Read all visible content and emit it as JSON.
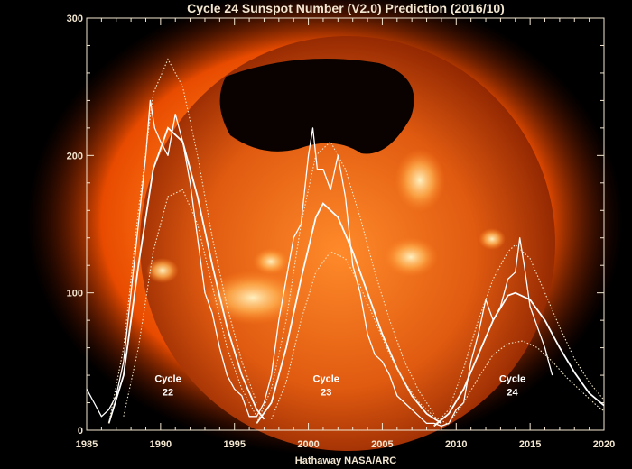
{
  "chart_data": {
    "type": "line",
    "title": "Cycle 24 Sunspot Number (V2.0) Prediction (2016/10)",
    "credit": "Hathaway  NASA/ARC",
    "xlim": [
      1985,
      2020
    ],
    "ylim": [
      0,
      300
    ],
    "x_ticks": [
      1985,
      1990,
      1995,
      2000,
      2005,
      2010,
      2015,
      2020
    ],
    "y_ticks": [
      0,
      100,
      200,
      300
    ],
    "colors": {
      "observed": "#ffffff",
      "fit": "#ffffff",
      "bounds": "#f0e6c8",
      "axes": "#f2e6d0"
    },
    "annotations": [
      {
        "lines": [
          "Cycle",
          "22"
        ],
        "x": 1990.5,
        "y": 30
      },
      {
        "lines": [
          "Cycle",
          "23"
        ],
        "x": 2001.2,
        "y": 30
      },
      {
        "lines": [
          "Cycle",
          "24"
        ],
        "x": 2013.8,
        "y": 30
      }
    ],
    "series": [
      {
        "style": "observed-monthly",
        "x": [
          1985.0,
          1985.5,
          1986.0,
          1986.5,
          1987.0,
          1987.5,
          1988.0,
          1988.5,
          1989.0,
          1989.3,
          1989.6,
          1990.0,
          1990.5,
          1991.0,
          1991.5,
          1992.0,
          1992.5,
          1993.0,
          1993.5,
          1994.0,
          1994.5,
          1995.0,
          1995.5,
          1996.0,
          1996.5,
          1997.0,
          1997.5,
          1998.0,
          1998.5,
          1999.0,
          1999.5,
          2000.0,
          2000.3,
          2000.6,
          2001.0,
          2001.5,
          2002.0,
          2002.5,
          2003.0,
          2003.5,
          2004.0,
          2004.5,
          2005.0,
          2005.5,
          2006.0,
          2006.5,
          2007.0,
          2007.5,
          2008.0,
          2008.5,
          2009.0,
          2009.5,
          2010.0,
          2010.5,
          2011.0,
          2011.5,
          2012.0,
          2012.5,
          2013.0,
          2013.5,
          2014.0,
          2014.3,
          2014.6,
          2015.0,
          2015.5,
          2016.0,
          2016.5
        ],
        "y": [
          30,
          20,
          10,
          15,
          25,
          50,
          100,
          150,
          200,
          240,
          220,
          210,
          200,
          230,
          210,
          180,
          140,
          100,
          85,
          60,
          40,
          30,
          25,
          10,
          10,
          20,
          40,
          80,
          110,
          140,
          150,
          200,
          220,
          190,
          190,
          175,
          200,
          170,
          120,
          100,
          70,
          55,
          50,
          40,
          25,
          20,
          15,
          10,
          5,
          5,
          3,
          5,
          15,
          20,
          50,
          70,
          95,
          80,
          90,
          110,
          115,
          140,
          120,
          90,
          75,
          60,
          40
        ]
      },
      {
        "style": "predicted-fit",
        "cycles": [
          {
            "x": [
              1986.5,
              1987.5,
              1988.5,
              1989.5,
              1990.5,
              1991.5,
              1992.5,
              1993.5,
              1994.5,
              1995.5,
              1996.5,
              1997.0
            ],
            "y": [
              5,
              40,
              120,
              190,
              220,
              210,
              170,
              120,
              75,
              40,
              15,
              8
            ]
          },
          {
            "x": [
              1996.5,
              1997.5,
              1998.5,
              1999.5,
              2000.5,
              2001.0,
              2002.0,
              2003.0,
              2004.0,
              2005.0,
              2006.0,
              2007.0,
              2008.0,
              2009.0
            ],
            "y": [
              5,
              20,
              60,
              110,
              155,
              165,
              155,
              130,
              100,
              70,
              45,
              25,
              12,
              5
            ]
          },
          {
            "x": [
              2008.5,
              2009.5,
              2010.5,
              2011.5,
              2012.5,
              2013.5,
              2014.0,
              2015.0,
              2016.0,
              2017.0,
              2018.0,
              2019.0,
              2020.0
            ],
            "y": [
              3,
              12,
              30,
              55,
              80,
              98,
              100,
              95,
              80,
              60,
              42,
              27,
              18
            ]
          }
        ]
      },
      {
        "style": "upper-bound",
        "cycles": [
          {
            "x": [
              1986.5,
              1987.5,
              1988.5,
              1989.5,
              1990.5,
              1991.5,
              1992.5,
              1993.5,
              1994.5,
              1995.5,
              1996.5
            ],
            "y": [
              5,
              60,
              160,
              245,
              270,
              250,
              200,
              140,
              90,
              50,
              20
            ]
          },
          {
            "x": [
              1996.5,
              1997.5,
              1998.5,
              1999.5,
              2000.5,
              2001.5,
              2002.5,
              2003.5,
              2004.5,
              2005.5,
              2006.5,
              2007.5,
              2008.5
            ],
            "y": [
              5,
              30,
              80,
              150,
              200,
              210,
              190,
              155,
              115,
              80,
              50,
              28,
              12
            ]
          },
          {
            "x": [
              2008.5,
              2009.5,
              2010.5,
              2011.5,
              2012.5,
              2013.5,
              2014.0,
              2015.0,
              2016.0,
              2017.0,
              2018.0,
              2019.0,
              2020.0
            ],
            "y": [
              3,
              15,
              45,
              80,
              110,
              130,
              135,
              125,
              100,
              75,
              52,
              35,
              22
            ]
          }
        ]
      },
      {
        "style": "lower-bound",
        "cycles": [
          {
            "x": [
              1987.5,
              1988.5,
              1989.5,
              1990.5,
              1991.5,
              1992.5,
              1993.5,
              1994.5,
              1995.5,
              1996.5
            ],
            "y": [
              10,
              60,
              130,
              170,
              175,
              150,
              105,
              60,
              30,
              10
            ]
          },
          {
            "x": [
              1997.5,
              1998.5,
              1999.5,
              2000.5,
              2001.5,
              2002.5,
              2003.5,
              2004.5,
              2005.5,
              2006.5,
              2007.5,
              2008.5,
              2009.5
            ],
            "y": [
              8,
              35,
              80,
              115,
              130,
              125,
              105,
              80,
              55,
              35,
              20,
              10,
              4
            ]
          },
          {
            "x": [
              2009.5,
              2010.5,
              2011.5,
              2012.5,
              2013.5,
              2014.5,
              2015.5,
              2016.5,
              2017.5,
              2018.5,
              2019.5,
              2020.0
            ],
            "y": [
              5,
              20,
              38,
              55,
              63,
              65,
              60,
              50,
              38,
              28,
              18,
              14
            ]
          }
        ]
      }
    ]
  }
}
